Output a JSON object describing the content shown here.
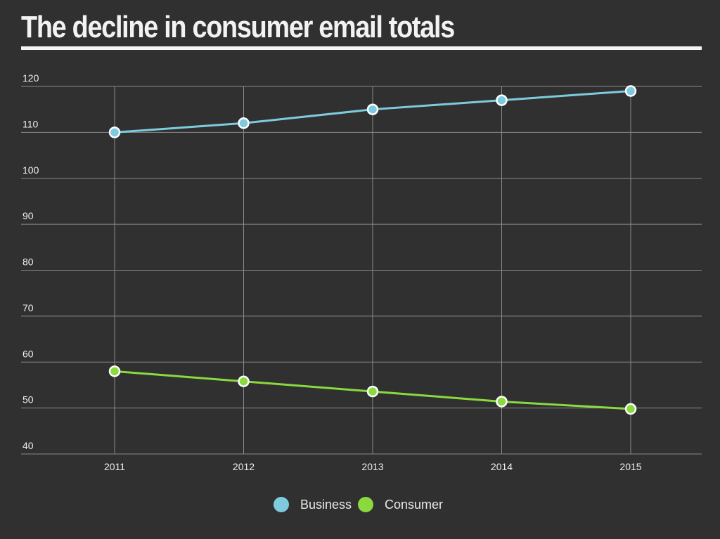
{
  "chart_data": {
    "type": "line",
    "title": "The decline in consumer email totals",
    "x": [
      "2011",
      "2012",
      "2013",
      "2014",
      "2015"
    ],
    "ylim": [
      40,
      120
    ],
    "yticks": [
      40,
      50,
      60,
      70,
      80,
      90,
      100,
      110,
      120
    ],
    "grid": true,
    "legend": "bottom-center",
    "series": [
      {
        "name": "Business",
        "color": "#7ecbdf",
        "values": [
          110,
          112,
          115,
          117,
          119
        ]
      },
      {
        "name": "Consumer",
        "color": "#8ad93f",
        "values": [
          58,
          55.8,
          53.6,
          51.4,
          49.8
        ]
      }
    ]
  }
}
